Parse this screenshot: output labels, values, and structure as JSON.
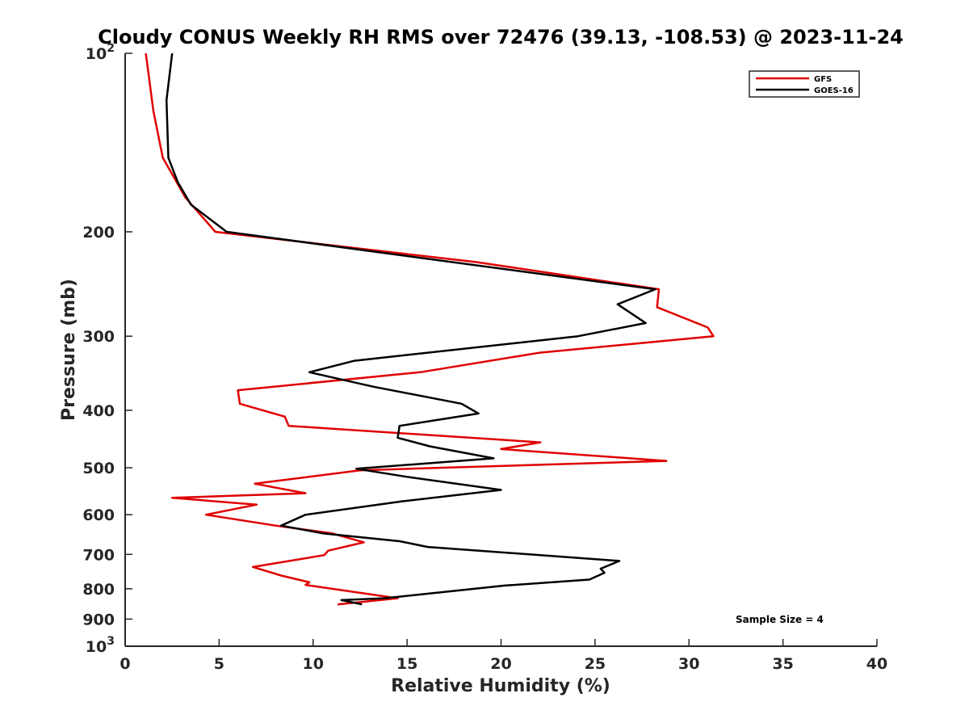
{
  "chart_data": {
    "type": "line",
    "title": "Cloudy CONUS Weekly RH RMS over 72476 (39.13, -108.53) @ 2023-11-24",
    "xlabel": "Relative Humidity (%)",
    "ylabel": "Pressure (mb)",
    "xlim": [
      0,
      40
    ],
    "ylim": [
      100,
      1000
    ],
    "y_scale": "log",
    "y_reversed": true,
    "x_ticks": [
      0,
      5,
      10,
      15,
      20,
      25,
      30,
      35,
      40
    ],
    "y_ticks": [
      {
        "value": 100,
        "base": "10",
        "exp": "2"
      },
      {
        "value": 200,
        "label": "200"
      },
      {
        "value": 300,
        "label": "300"
      },
      {
        "value": 400,
        "label": "400"
      },
      {
        "value": 500,
        "label": "500"
      },
      {
        "value": 600,
        "label": "600"
      },
      {
        "value": 700,
        "label": "700"
      },
      {
        "value": 800,
        "label": "800"
      },
      {
        "value": 900,
        "label": "900"
      },
      {
        "value": 1000,
        "base": "10",
        "exp": "3"
      }
    ],
    "legend_position": "top-right",
    "annotation": "Sample Size = 4",
    "series": [
      {
        "name": "GFS",
        "color": "#e00000",
        "points": [
          [
            1.1,
            100
          ],
          [
            1.5,
            125
          ],
          [
            2.0,
            150
          ],
          [
            3.2,
            175
          ],
          [
            4.8,
            200
          ],
          [
            18.7,
            225
          ],
          [
            28.4,
            250
          ],
          [
            28.3,
            268
          ],
          [
            31.0,
            290
          ],
          [
            31.3,
            300
          ],
          [
            22.0,
            320
          ],
          [
            15.7,
            345
          ],
          [
            6.0,
            370
          ],
          [
            6.1,
            390
          ],
          [
            8.5,
            410
          ],
          [
            8.7,
            425
          ],
          [
            22.1,
            453
          ],
          [
            20.0,
            465
          ],
          [
            28.8,
            487
          ],
          [
            12.5,
            505
          ],
          [
            6.9,
            532
          ],
          [
            9.6,
            552
          ],
          [
            2.5,
            562
          ],
          [
            7.0,
            577
          ],
          [
            4.3,
            600
          ],
          [
            8.0,
            626
          ],
          [
            11.0,
            645
          ],
          [
            12.7,
            668
          ],
          [
            10.8,
            690
          ],
          [
            10.6,
            702
          ],
          [
            6.8,
            735
          ],
          [
            8.3,
            760
          ],
          [
            9.8,
            780
          ],
          [
            9.6,
            788
          ],
          [
            14.5,
            830
          ],
          [
            11.3,
            850
          ]
        ]
      },
      {
        "name": "GOES-16",
        "color": "#000000",
        "points": [
          [
            2.5,
            100
          ],
          [
            2.2,
            120
          ],
          [
            2.3,
            150
          ],
          [
            2.8,
            165
          ],
          [
            3.5,
            180
          ],
          [
            5.4,
            200
          ],
          [
            28.2,
            250
          ],
          [
            26.2,
            265
          ],
          [
            27.7,
            285
          ],
          [
            24.1,
            300
          ],
          [
            12.2,
            330
          ],
          [
            9.8,
            345
          ],
          [
            13.2,
            365
          ],
          [
            17.9,
            390
          ],
          [
            18.8,
            405
          ],
          [
            14.6,
            425
          ],
          [
            14.5,
            445
          ],
          [
            16.2,
            460
          ],
          [
            19.6,
            482
          ],
          [
            12.3,
            502
          ],
          [
            15.0,
            518
          ],
          [
            20.0,
            545
          ],
          [
            14.7,
            570
          ],
          [
            9.6,
            600
          ],
          [
            8.3,
            626
          ],
          [
            10.5,
            645
          ],
          [
            14.6,
            665
          ],
          [
            16.1,
            680
          ],
          [
            26.3,
            718
          ],
          [
            25.3,
            740
          ],
          [
            25.5,
            752
          ],
          [
            24.7,
            772
          ],
          [
            20.2,
            790
          ],
          [
            13.8,
            830
          ],
          [
            11.5,
            836
          ],
          [
            12.6,
            850
          ]
        ]
      }
    ]
  }
}
